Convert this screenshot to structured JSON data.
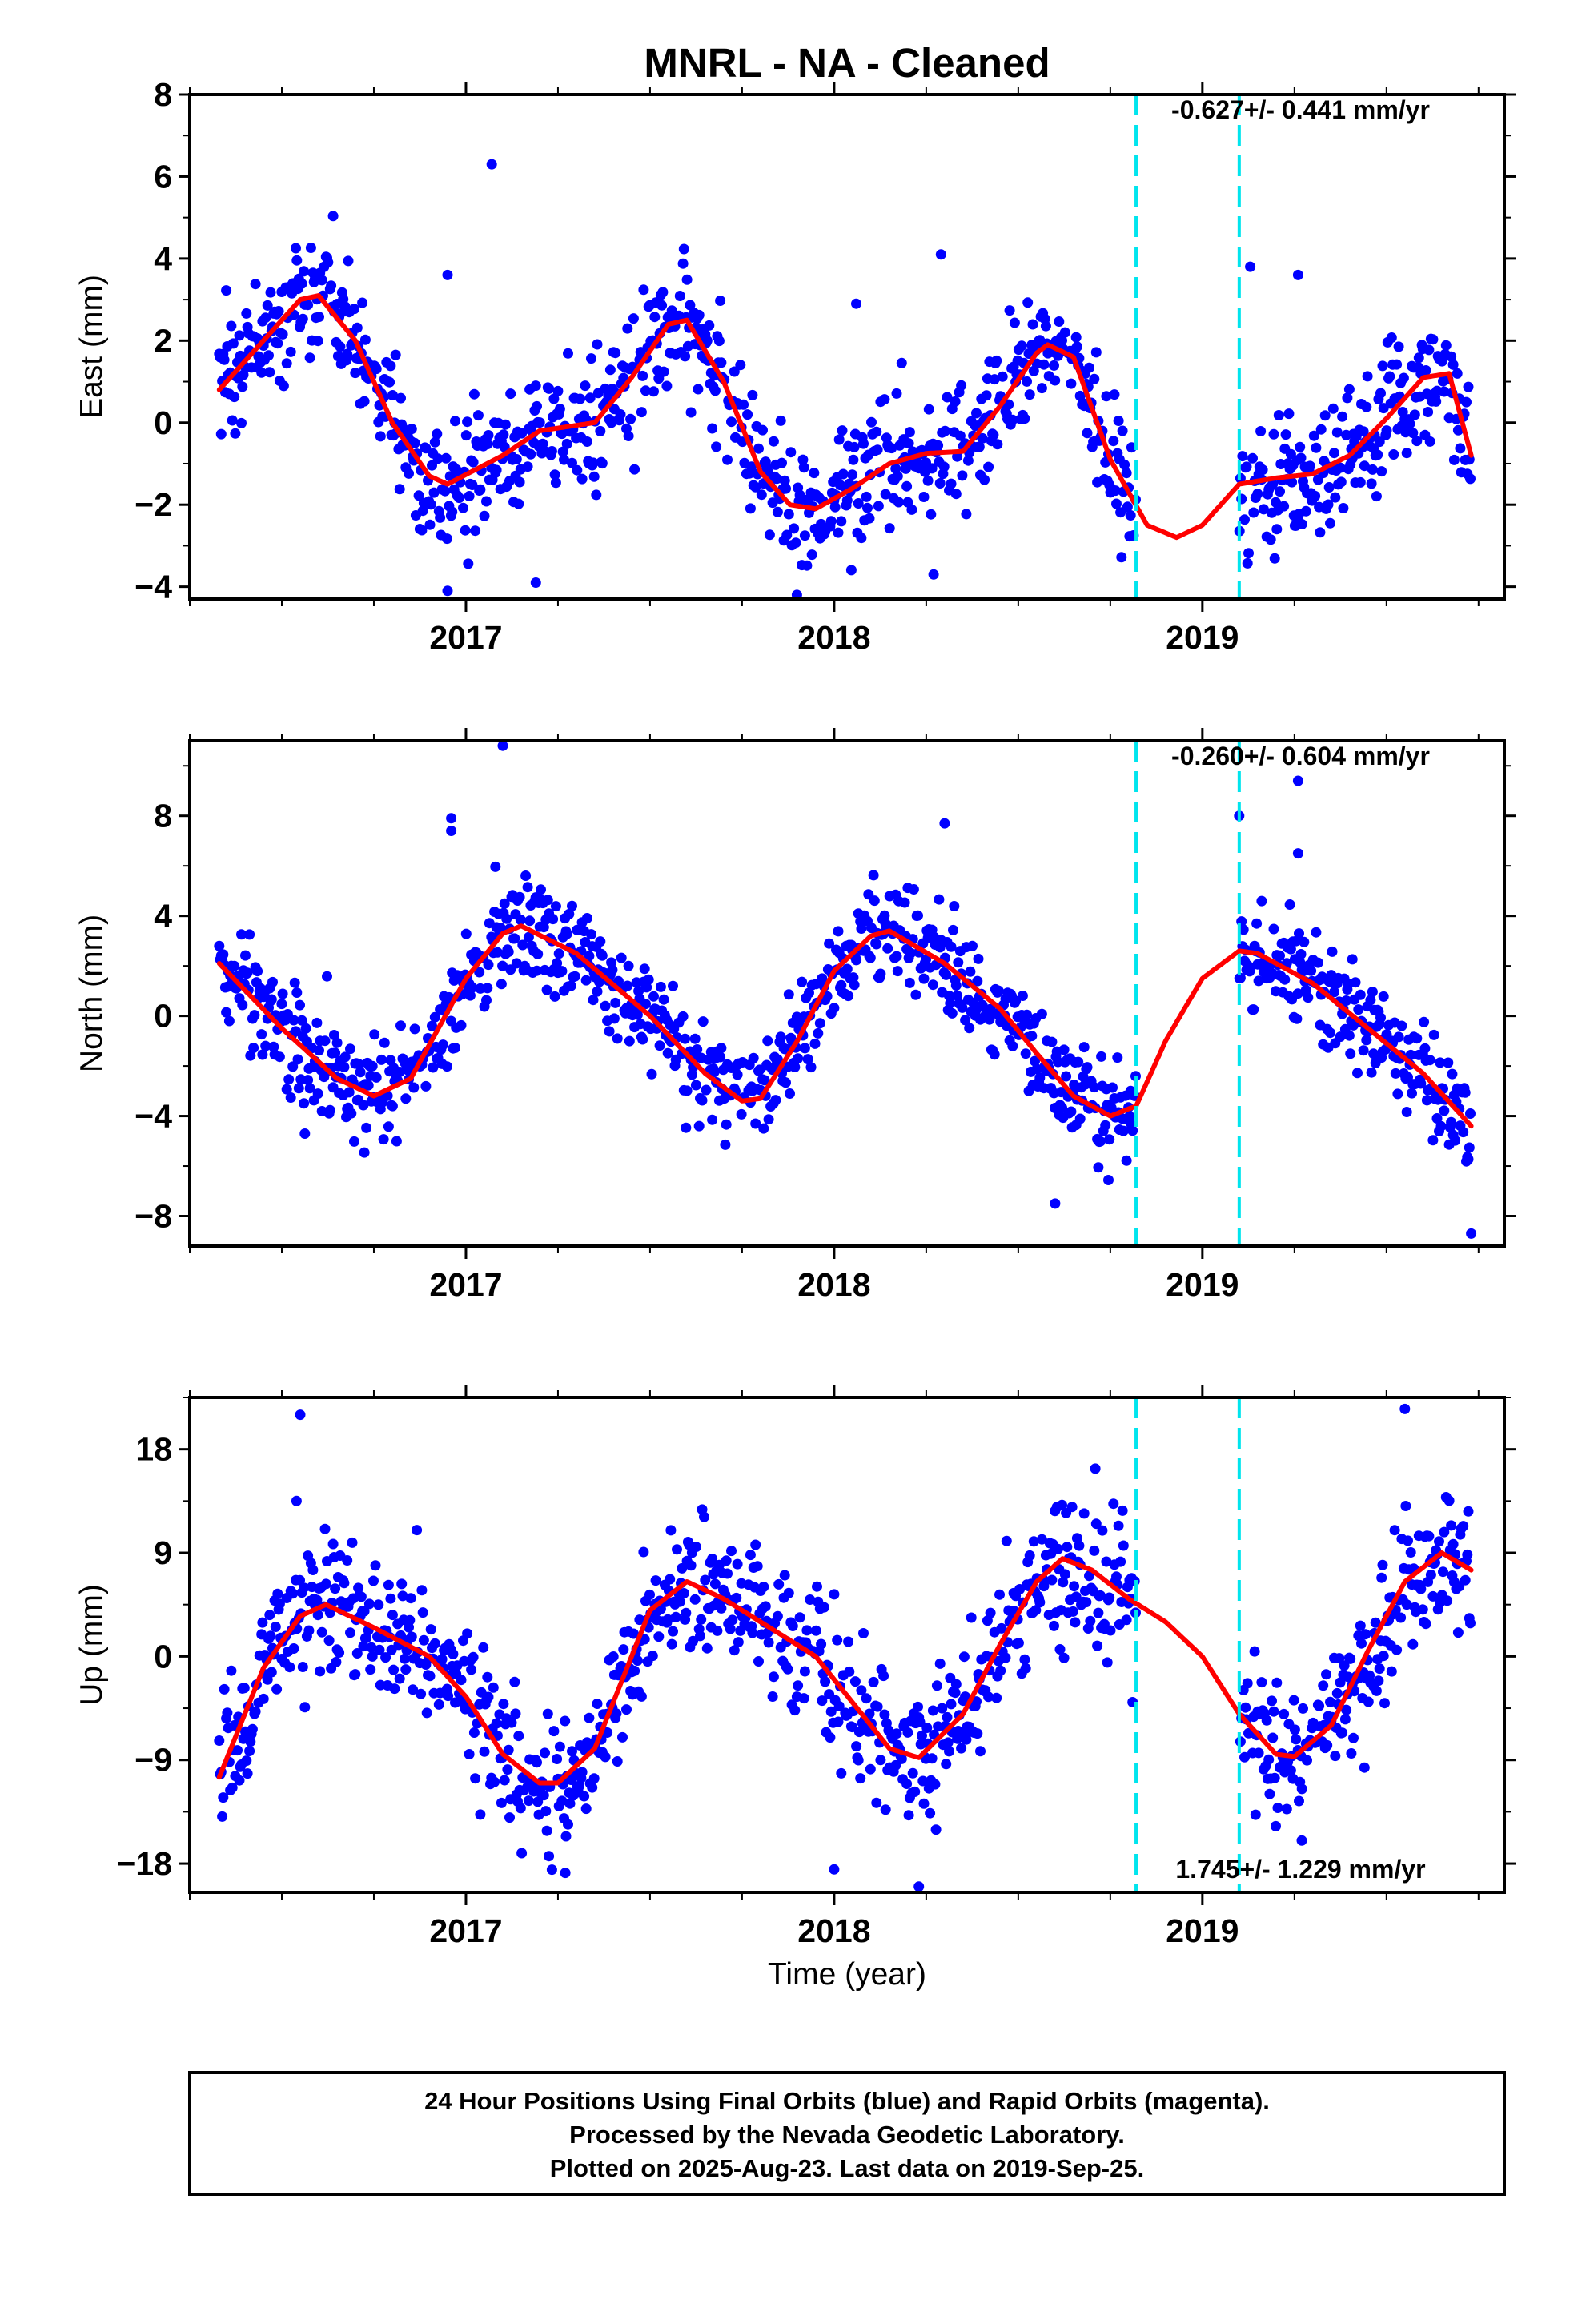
{
  "title": "MNRL  - NA - Cleaned",
  "footer": {
    "lines": [
      "24 Hour Positions Using Final Orbits (blue) and Rapid Orbits (magenta).",
      "Processed by the Nevada Geodetic Laboratory.",
      "Plotted on 2025-Aug-23. Last data on 2019-Sep-25."
    ]
  },
  "colors": {
    "points": "#0000ff",
    "fit": "#ff0000",
    "event_lines": "#00e5ee",
    "frame": "#000000"
  },
  "chart_data": [
    {
      "type": "scatter",
      "panel": "east",
      "ylabel": "East (mm)",
      "xlim": [
        2016.25,
        2019.82
      ],
      "ylim": [
        -4.3,
        8.0
      ],
      "yticks": [
        -4,
        -2,
        0,
        2,
        4,
        6,
        8
      ],
      "xticks": [
        2017,
        2018,
        2019
      ],
      "xtick_labels": [
        "2017",
        "2018",
        "2019"
      ],
      "event_lines": [
        2018.82,
        2019.1
      ],
      "rate_label": "-0.627+/- 0.441 mm/yr",
      "rate_position": "top-right",
      "data_gap": [
        2018.82,
        2019.1
      ],
      "noise_sd": 0.8,
      "outliers": [
        [
          2017.07,
          6.3
        ],
        [
          2016.95,
          3.6
        ],
        [
          2018.06,
          2.9
        ],
        [
          2018.29,
          4.1
        ],
        [
          2019.26,
          3.6
        ],
        [
          2019.13,
          3.8
        ],
        [
          2016.95,
          -4.1
        ],
        [
          2017.19,
          -3.9
        ],
        [
          2018.27,
          -3.7
        ]
      ],
      "fit": {
        "x": [
          2016.33,
          2016.45,
          2016.55,
          2016.6,
          2016.7,
          2016.8,
          2016.9,
          2016.95,
          2017.1,
          2017.2,
          2017.35,
          2017.45,
          2017.55,
          2017.6,
          2017.7,
          2017.8,
          2017.88,
          2017.95,
          2018.05,
          2018.15,
          2018.25,
          2018.35,
          2018.45,
          2018.55,
          2018.58,
          2018.65,
          2018.75,
          2018.85,
          2018.93,
          2019.0,
          2019.1,
          2019.2,
          2019.3,
          2019.4,
          2019.5,
          2019.6,
          2019.67,
          2019.73
        ],
        "y": [
          0.8,
          2.0,
          3.0,
          3.1,
          2.0,
          0.0,
          -1.3,
          -1.5,
          -0.8,
          -0.2,
          0.0,
          1.1,
          2.4,
          2.5,
          1.0,
          -1.2,
          -2.0,
          -2.1,
          -1.6,
          -1.0,
          -0.75,
          -0.7,
          0.4,
          1.7,
          1.9,
          1.6,
          -0.9,
          -2.5,
          -2.8,
          -2.5,
          -1.5,
          -1.35,
          -1.25,
          -0.8,
          0.1,
          1.1,
          1.2,
          -0.8
        ]
      }
    },
    {
      "type": "scatter",
      "panel": "north",
      "ylabel": "North (mm)",
      "xlim": [
        2016.25,
        2019.82
      ],
      "ylim": [
        -9.2,
        11.0
      ],
      "yticks": [
        -8,
        -4,
        0,
        4,
        8
      ],
      "xticks": [
        2017,
        2018,
        2019
      ],
      "xtick_labels": [
        "2017",
        "2018",
        "2019"
      ],
      "event_lines": [
        2018.82,
        2019.1
      ],
      "rate_label": "-0.260+/- 0.604 mm/yr",
      "rate_position": "top-right",
      "data_gap": [
        2018.82,
        2019.1
      ],
      "noise_sd": 1.0,
      "outliers": [
        [
          2017.1,
          10.8
        ],
        [
          2016.96,
          7.9
        ],
        [
          2016.96,
          7.4
        ],
        [
          2018.3,
          7.7
        ],
        [
          2019.1,
          8.0
        ],
        [
          2019.26,
          9.4
        ],
        [
          2019.26,
          6.5
        ],
        [
          2019.73,
          -8.7
        ],
        [
          2018.6,
          -7.5
        ]
      ],
      "fit": {
        "x": [
          2016.33,
          2016.5,
          2016.65,
          2016.75,
          2016.85,
          2017.0,
          2017.1,
          2017.15,
          2017.3,
          2017.5,
          2017.65,
          2017.75,
          2017.8,
          2017.9,
          2018.0,
          2018.1,
          2018.15,
          2018.3,
          2018.45,
          2018.55,
          2018.65,
          2018.75,
          2018.82,
          2018.9,
          2019.0,
          2019.1,
          2019.15,
          2019.3,
          2019.45,
          2019.6,
          2019.73
        ],
        "y": [
          2.1,
          -0.5,
          -2.5,
          -3.2,
          -2.5,
          1.5,
          3.3,
          3.6,
          2.5,
          0.0,
          -2.3,
          -3.4,
          -3.3,
          -1.0,
          1.8,
          3.2,
          3.4,
          2.1,
          0.3,
          -1.5,
          -3.2,
          -4.0,
          -3.6,
          -1.0,
          1.5,
          2.6,
          2.5,
          1.3,
          -0.5,
          -2.3,
          -4.4
        ]
      }
    },
    {
      "type": "scatter",
      "panel": "up",
      "ylabel": "Up (mm)",
      "xlabel": "Time (year)",
      "xlim": [
        2016.25,
        2019.82
      ],
      "ylim": [
        -20.5,
        22.5
      ],
      "yticks": [
        -18,
        -9,
        0,
        9,
        18
      ],
      "xticks": [
        2017,
        2018,
        2019
      ],
      "xtick_labels": [
        "2017",
        "2018",
        "2019"
      ],
      "event_lines": [
        2018.82,
        2019.1
      ],
      "rate_label": "1.745+/- 1.229 mm/yr",
      "rate_position": "bottom-right",
      "data_gap": [
        2018.82,
        2019.1
      ],
      "noise_sd": 3.0,
      "outliers": [
        [
          2016.55,
          21.0
        ],
        [
          2019.55,
          21.5
        ],
        [
          2016.54,
          13.5
        ],
        [
          2018.0,
          -18.5
        ],
        [
          2018.23,
          -20.0
        ],
        [
          2017.27,
          -18.8
        ],
        [
          2019.27,
          -16.0
        ]
      ],
      "fit": {
        "x": [
          2016.33,
          2016.45,
          2016.55,
          2016.62,
          2016.75,
          2016.9,
          2017.0,
          2017.1,
          2017.2,
          2017.25,
          2017.35,
          2017.45,
          2017.5,
          2017.6,
          2017.7,
          2017.85,
          2017.95,
          2018.05,
          2018.15,
          2018.23,
          2018.35,
          2018.45,
          2018.55,
          2018.62,
          2018.7,
          2018.8,
          2018.9,
          2019.0,
          2019.1,
          2019.2,
          2019.25,
          2019.35,
          2019.45,
          2019.55,
          2019.65,
          2019.73
        ],
        "y": [
          -10.5,
          -1.0,
          3.5,
          4.5,
          2.5,
          0.0,
          -3.5,
          -8.5,
          -11.0,
          -11.0,
          -8.0,
          0.0,
          4.0,
          6.5,
          5.0,
          2.0,
          0.0,
          -4.0,
          -8.0,
          -8.8,
          -5.0,
          1.0,
          6.5,
          8.5,
          7.5,
          5.0,
          3.0,
          0.0,
          -5.0,
          -8.5,
          -8.7,
          -6.0,
          0.5,
          6.5,
          9.0,
          7.5
        ]
      }
    }
  ]
}
